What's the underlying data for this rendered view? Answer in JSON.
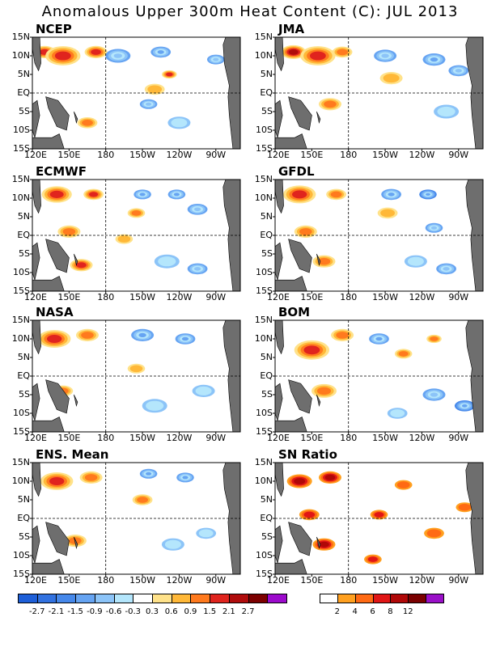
{
  "title": "Anomalous Upper 300m Heat Content (C): JUL 2013",
  "chart_data": {
    "type": "heatmap",
    "title": "Anomalous Upper 300m Heat Content (C): JUL 2013",
    "x_ticks": [
      "120E",
      "150E",
      "180",
      "150W",
      "120W",
      "90W"
    ],
    "y_ticks": [
      "15N",
      "10N",
      "5N",
      "EQ",
      "5S",
      "10S",
      "15S"
    ],
    "lon_range": [
      120,
      290
    ],
    "lat_range": [
      -15,
      15
    ],
    "panels": [
      {
        "name": "NCEP",
        "anomalies": [
          {
            "lon": 130,
            "lat": 11,
            "value": 2.0,
            "size": 9
          },
          {
            "lon": 145,
            "lat": 10,
            "value": 1.5,
            "size": 14
          },
          {
            "lon": 172,
            "lat": 11,
            "value": 1.5,
            "size": 9
          },
          {
            "lon": 232,
            "lat": 5,
            "value": 1.5,
            "size": 6
          },
          {
            "lon": 165,
            "lat": -8,
            "value": 1.2,
            "size": 8
          },
          {
            "lon": 220,
            "lat": 1,
            "value": 0.6,
            "size": 8
          },
          {
            "lon": 190,
            "lat": 10,
            "value": -0.9,
            "size": 10
          },
          {
            "lon": 225,
            "lat": 11,
            "value": -1.2,
            "size": 8
          },
          {
            "lon": 215,
            "lat": -3,
            "value": -0.9,
            "size": 7
          },
          {
            "lon": 240,
            "lat": -8,
            "value": -0.6,
            "size": 9
          },
          {
            "lon": 270,
            "lat": 9,
            "value": -0.9,
            "size": 7
          }
        ]
      },
      {
        "name": "JMA",
        "anomalies": [
          {
            "lon": 135,
            "lat": 11,
            "value": 2.3,
            "size": 10
          },
          {
            "lon": 155,
            "lat": 10,
            "value": 1.5,
            "size": 14
          },
          {
            "lon": 175,
            "lat": 11,
            "value": 1.2,
            "size": 8
          },
          {
            "lon": 165,
            "lat": -3,
            "value": 0.9,
            "size": 9
          },
          {
            "lon": 215,
            "lat": 4,
            "value": 0.6,
            "size": 9
          },
          {
            "lon": 210,
            "lat": 10,
            "value": -0.9,
            "size": 9
          },
          {
            "lon": 250,
            "lat": 9,
            "value": -1.2,
            "size": 9
          },
          {
            "lon": 270,
            "lat": 6,
            "value": -0.9,
            "size": 8
          },
          {
            "lon": 260,
            "lat": -5,
            "value": -0.6,
            "size": 10
          }
        ]
      },
      {
        "name": "ECMWF",
        "anomalies": [
          {
            "lon": 140,
            "lat": 11,
            "value": 1.8,
            "size": 12
          },
          {
            "lon": 170,
            "lat": 11,
            "value": 1.5,
            "size": 8
          },
          {
            "lon": 150,
            "lat": 1,
            "value": 1.0,
            "size": 9
          },
          {
            "lon": 160,
            "lat": -8,
            "value": 1.5,
            "size": 9
          },
          {
            "lon": 205,
            "lat": 6,
            "value": 1.2,
            "size": 7
          },
          {
            "lon": 195,
            "lat": -1,
            "value": 0.6,
            "size": 7
          },
          {
            "lon": 210,
            "lat": 11,
            "value": -1.2,
            "size": 7
          },
          {
            "lon": 238,
            "lat": 11,
            "value": -1.2,
            "size": 7
          },
          {
            "lon": 255,
            "lat": 7,
            "value": -0.9,
            "size": 8
          },
          {
            "lon": 230,
            "lat": -7,
            "value": -0.6,
            "size": 10
          },
          {
            "lon": 255,
            "lat": -9,
            "value": -0.9,
            "size": 8
          }
        ]
      },
      {
        "name": "GFDL",
        "anomalies": [
          {
            "lon": 140,
            "lat": 11,
            "value": 1.5,
            "size": 13
          },
          {
            "lon": 170,
            "lat": 11,
            "value": 1.2,
            "size": 8
          },
          {
            "lon": 145,
            "lat": 1,
            "value": 0.9,
            "size": 9
          },
          {
            "lon": 160,
            "lat": -7,
            "value": 0.9,
            "size": 9
          },
          {
            "lon": 212,
            "lat": 6,
            "value": 0.6,
            "size": 8
          },
          {
            "lon": 215,
            "lat": 11,
            "value": -1.2,
            "size": 8
          },
          {
            "lon": 245,
            "lat": 11,
            "value": -1.5,
            "size": 7
          },
          {
            "lon": 250,
            "lat": 2,
            "value": -0.9,
            "size": 7
          },
          {
            "lon": 235,
            "lat": -7,
            "value": -0.6,
            "size": 9
          },
          {
            "lon": 260,
            "lat": -9,
            "value": -0.9,
            "size": 8
          }
        ]
      },
      {
        "name": "NASA",
        "anomalies": [
          {
            "lon": 138,
            "lat": 10,
            "value": 2.0,
            "size": 13
          },
          {
            "lon": 165,
            "lat": 11,
            "value": 1.3,
            "size": 9
          },
          {
            "lon": 145,
            "lat": -4,
            "value": 1.2,
            "size": 8
          },
          {
            "lon": 205,
            "lat": 2,
            "value": 0.6,
            "size": 7
          },
          {
            "lon": 210,
            "lat": 11,
            "value": -1.2,
            "size": 9
          },
          {
            "lon": 245,
            "lat": 10,
            "value": -1.2,
            "size": 8
          },
          {
            "lon": 220,
            "lat": -8,
            "value": -0.6,
            "size": 10
          },
          {
            "lon": 260,
            "lat": -4,
            "value": -0.6,
            "size": 9
          }
        ]
      },
      {
        "name": "BOM",
        "anomalies": [
          {
            "lon": 150,
            "lat": 7,
            "value": 1.5,
            "size": 14
          },
          {
            "lon": 175,
            "lat": 11,
            "value": 1.3,
            "size": 9
          },
          {
            "lon": 160,
            "lat": -4,
            "value": 0.9,
            "size": 10
          },
          {
            "lon": 225,
            "lat": 6,
            "value": 1.2,
            "size": 7
          },
          {
            "lon": 250,
            "lat": 10,
            "value": 1.0,
            "size": 6
          },
          {
            "lon": 205,
            "lat": 10,
            "value": -1.2,
            "size": 8
          },
          {
            "lon": 250,
            "lat": -5,
            "value": -0.9,
            "size": 9
          },
          {
            "lon": 275,
            "lat": -8,
            "value": -1.5,
            "size": 8
          },
          {
            "lon": 220,
            "lat": -10,
            "value": -0.6,
            "size": 8
          }
        ]
      },
      {
        "name": "ENS. Mean",
        "anomalies": [
          {
            "lon": 140,
            "lat": 10,
            "value": 1.8,
            "size": 13
          },
          {
            "lon": 168,
            "lat": 11,
            "value": 1.2,
            "size": 9
          },
          {
            "lon": 155,
            "lat": -6,
            "value": 0.9,
            "size": 9
          },
          {
            "lon": 210,
            "lat": 5,
            "value": 0.9,
            "size": 8
          },
          {
            "lon": 215,
            "lat": 12,
            "value": -1.2,
            "size": 7
          },
          {
            "lon": 245,
            "lat": 11,
            "value": -1.2,
            "size": 7
          },
          {
            "lon": 235,
            "lat": -7,
            "value": -0.6,
            "size": 9
          },
          {
            "lon": 262,
            "lat": -4,
            "value": -0.6,
            "size": 8
          }
        ]
      },
      {
        "name": "SN Ratio",
        "anomalies": [
          {
            "lon": 140,
            "lat": 10,
            "value": 10,
            "size": 10
          },
          {
            "lon": 165,
            "lat": 11,
            "value": 8,
            "size": 9
          },
          {
            "lon": 148,
            "lat": 1,
            "value": 6,
            "size": 8
          },
          {
            "lon": 160,
            "lat": -7,
            "value": 10,
            "size": 9
          },
          {
            "lon": 205,
            "lat": 1,
            "value": 6,
            "size": 7
          },
          {
            "lon": 225,
            "lat": 9,
            "value": 5,
            "size": 7
          },
          {
            "lon": 250,
            "lat": -4,
            "value": 5,
            "size": 8
          },
          {
            "lon": 200,
            "lat": -11,
            "value": 6,
            "size": 7
          },
          {
            "lon": 275,
            "lat": 3,
            "value": 4,
            "size": 7
          }
        ]
      }
    ],
    "anomaly_colorbar": {
      "levels": [
        "-2.7",
        "-2.1",
        "-1.5",
        "-0.9",
        "-0.6",
        "-0.3",
        "0.3",
        "0.6",
        "0.9",
        "1.5",
        "2.1",
        "2.7"
      ],
      "colors": [
        "#1e5fd8",
        "#3272e0",
        "#4688ea",
        "#66a4f2",
        "#8cc4f8",
        "#b4e6fc",
        "#ffffff",
        "#ffe28a",
        "#ffb838",
        "#ff7a1e",
        "#e0241e",
        "#b00c0c",
        "#7c0000",
        "#9c0acc"
      ]
    },
    "sn_colorbar": {
      "levels": [
        "2",
        "4",
        "6",
        "8",
        "12"
      ],
      "colors": [
        "#ffffff",
        "#ffa020",
        "#ff6a14",
        "#e01616",
        "#b00808",
        "#7a0000",
        "#9a10c8"
      ]
    }
  }
}
